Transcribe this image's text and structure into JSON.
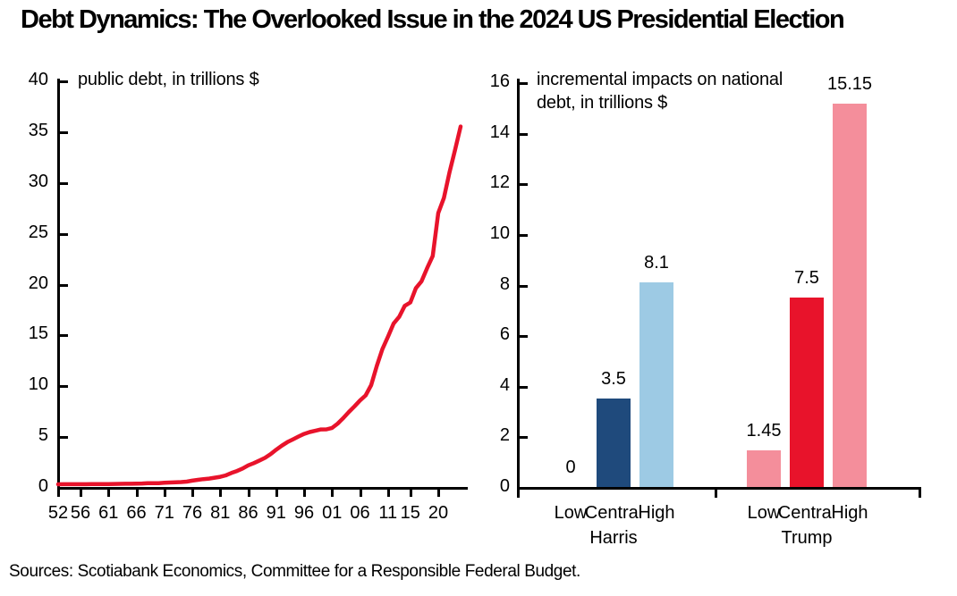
{
  "title": "Debt Dynamics: The Overlooked Issue in the 2024 US Presidential Election",
  "source": "Sources: Scotiabank Economics, Committee for a Responsible Federal Budget.",
  "colors": {
    "line_red": "#E8132B",
    "harris_central_navy": "#1F4A7C",
    "harris_light_blue": "#9DCAE4",
    "trump_central_red": "#E8132B",
    "trump_light_pink": "#F48E9B",
    "axis_black": "#000000"
  },
  "chart_data": [
    {
      "type": "line",
      "title": "public debt, in trillions $",
      "xlabel": "",
      "ylabel": "",
      "xlim": [
        1952,
        2024
      ],
      "ylim": [
        0,
        40
      ],
      "grid": false,
      "legend": "none",
      "y_ticks": [
        0,
        5,
        10,
        15,
        20,
        25,
        30,
        35,
        40
      ],
      "x_tick_years": [
        1952,
        1956,
        1961,
        1966,
        1971,
        1976,
        1981,
        1986,
        1991,
        1996,
        2001,
        2006,
        2011,
        2015,
        2020
      ],
      "x_tick_labels": [
        "52",
        "56",
        "61",
        "66",
        "71",
        "76",
        "81",
        "86",
        "91",
        "96",
        "01",
        "06",
        "11",
        "15",
        "20"
      ],
      "series": [
        {
          "name": "public debt",
          "color": "#E8132B",
          "x": [
            1952,
            1953,
            1954,
            1955,
            1956,
            1957,
            1958,
            1959,
            1960,
            1961,
            1962,
            1963,
            1964,
            1965,
            1966,
            1967,
            1968,
            1969,
            1970,
            1971,
            1972,
            1973,
            1974,
            1975,
            1976,
            1977,
            1978,
            1979,
            1980,
            1981,
            1982,
            1983,
            1984,
            1985,
            1986,
            1987,
            1988,
            1989,
            1990,
            1991,
            1992,
            1993,
            1994,
            1995,
            1996,
            1997,
            1998,
            1999,
            2000,
            2001,
            2002,
            2003,
            2004,
            2005,
            2006,
            2007,
            2008,
            2009,
            2010,
            2011,
            2012,
            2013,
            2014,
            2015,
            2016,
            2017,
            2018,
            2019,
            2020,
            2021,
            2022,
            2023,
            2024
          ],
          "values": [
            0.26,
            0.27,
            0.27,
            0.27,
            0.27,
            0.27,
            0.28,
            0.29,
            0.29,
            0.29,
            0.3,
            0.31,
            0.32,
            0.32,
            0.33,
            0.34,
            0.37,
            0.37,
            0.38,
            0.41,
            0.44,
            0.47,
            0.48,
            0.53,
            0.62,
            0.7,
            0.77,
            0.83,
            0.91,
            1.0,
            1.14,
            1.38,
            1.57,
            1.82,
            2.13,
            2.35,
            2.6,
            2.87,
            3.23,
            3.67,
            4.06,
            4.41,
            4.69,
            4.97,
            5.22,
            5.41,
            5.53,
            5.66,
            5.67,
            5.81,
            6.23,
            6.78,
            7.38,
            7.93,
            8.51,
            9.01,
            10.02,
            11.91,
            13.56,
            14.79,
            16.07,
            16.74,
            17.82,
            18.15,
            19.57,
            20.24,
            21.52,
            22.72,
            26.95,
            28.43,
            30.93,
            33.17,
            35.46
          ]
        }
      ]
    },
    {
      "type": "bar",
      "title": "incremental impacts on national debt, in trillions $",
      "title_lines": [
        "incremental impacts on national",
        "debt, in trillions $"
      ],
      "ylim": [
        0,
        16
      ],
      "grid": false,
      "legend": "none",
      "y_ticks": [
        0,
        2,
        4,
        6,
        8,
        10,
        12,
        14,
        16
      ],
      "groups": [
        {
          "name": "Harris",
          "categories": [
            "Low",
            "Central",
            "High"
          ],
          "values": [
            0,
            3.5,
            8.1
          ],
          "value_labels": [
            "0",
            "3.5",
            "8.1"
          ],
          "colors": [
            "#9DCAE4",
            "#1F4A7C",
            "#9DCAE4"
          ]
        },
        {
          "name": "Trump",
          "categories": [
            "Low",
            "Central",
            "High"
          ],
          "values": [
            1.45,
            7.5,
            15.15
          ],
          "value_labels": [
            "1.45",
            "7.5",
            "15.15"
          ],
          "colors": [
            "#F48E9B",
            "#E8132B",
            "#F48E9B"
          ]
        }
      ]
    }
  ]
}
